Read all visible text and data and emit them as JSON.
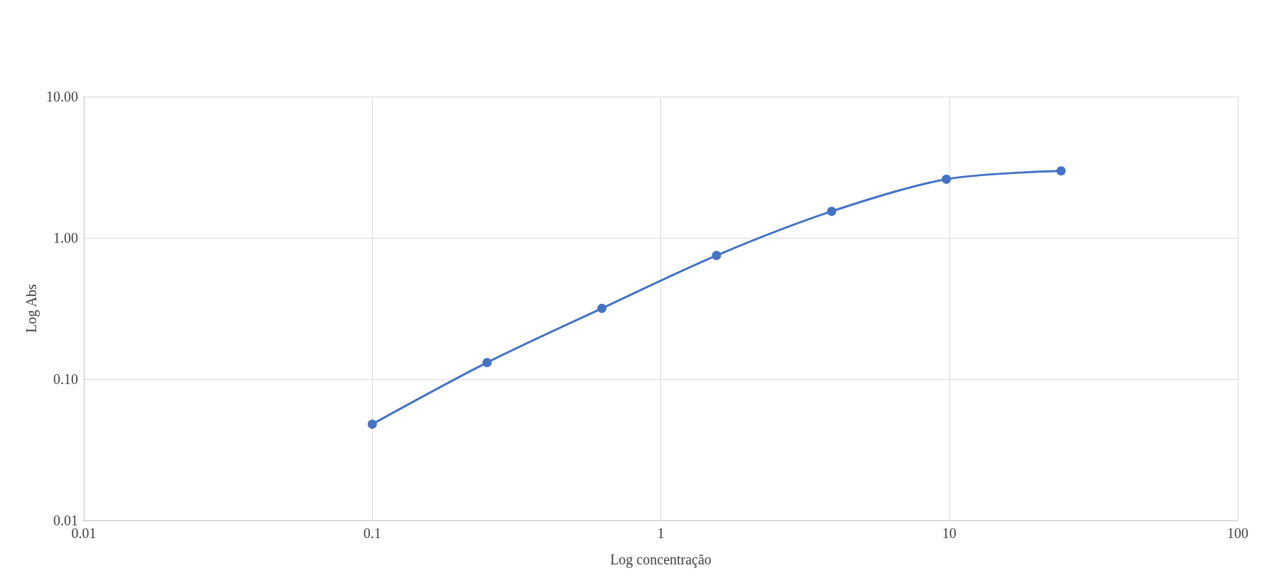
{
  "chart_data": {
    "type": "line",
    "xlabel": "Log concentração",
    "ylabel": "Log Abs",
    "log": "xy",
    "grid": true,
    "marker": "circle",
    "line_style": "solid",
    "x": [
      0.1,
      0.25,
      0.625,
      1.56,
      3.91,
      9.77,
      24.41
    ],
    "series": [
      {
        "color": "#4472c4",
        "values": [
          0.048,
          0.131,
          0.317,
          0.75,
          1.54,
          2.6,
          2.98
        ]
      }
    ],
    "xlim": [
      0.01,
      100
    ],
    "xticks": [
      0.01,
      0.1,
      1,
      10,
      100
    ],
    "ylim": [
      0.01,
      10
    ],
    "yticks": [
      {
        "value": 0.01,
        "label": "0.01"
      },
      {
        "value": 0.1,
        "label": "0.10"
      },
      {
        "value": 1,
        "label": "1.00"
      },
      {
        "value": 10,
        "label": "10.00"
      }
    ]
  }
}
